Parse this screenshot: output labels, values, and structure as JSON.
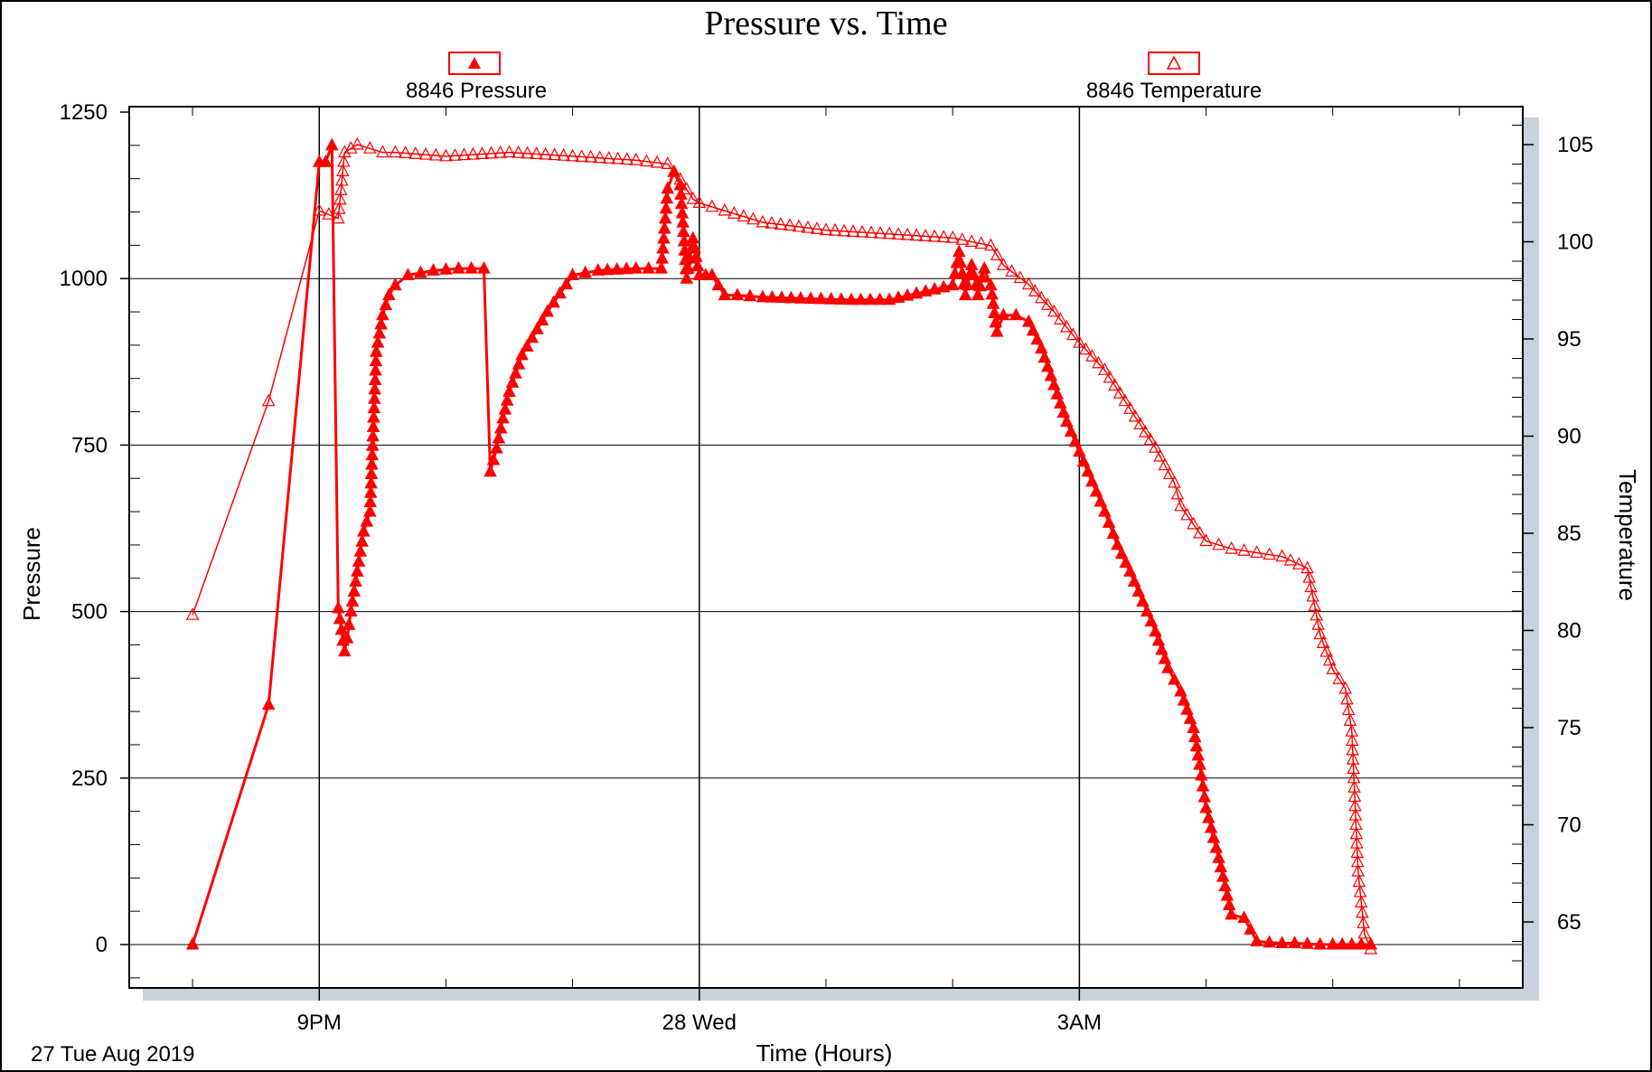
{
  "chart_data": {
    "type": "line",
    "title": "Pressure vs. Time",
    "xlabel": "Time (Hours)",
    "ylabel": "Pressure",
    "y2label": "Temperature",
    "date_label": "27 Tue Aug 2019",
    "x_unit": "hours",
    "xlim": [
      19.5,
      6.5
    ],
    "x_ticks": [
      {
        "x": 21,
        "label": "9PM"
      },
      {
        "x": 24,
        "label": "28 Wed"
      },
      {
        "x": 27,
        "label": "3AM"
      }
    ],
    "x_minor_ticks": [
      20,
      22,
      23,
      25,
      26,
      28,
      29,
      30
    ],
    "ylim": [
      -65,
      1250
    ],
    "y_ticks": [
      0,
      250,
      500,
      750,
      1000,
      1250
    ],
    "y2lim": [
      61.5,
      105.5
    ],
    "y2_ticks": [
      65,
      70,
      75,
      80,
      85,
      90,
      95,
      100,
      105
    ],
    "grid": true,
    "legend_position": "top",
    "series": [
      {
        "name": "8846 Pressure",
        "axis": "left",
        "color": "#ff0000",
        "marker": "filled-triangle",
        "x": [
          20.0,
          20.6,
          21.0,
          21.05,
          21.1,
          21.15,
          21.2,
          21.22,
          21.25,
          21.3,
          21.35,
          21.4,
          21.45,
          21.5,
          21.55,
          21.6,
          21.7,
          21.9,
          22.1,
          22.3,
          22.35,
          22.4,
          22.45,
          22.5,
          22.6,
          22.8,
          23.0,
          23.2,
          23.5,
          23.7,
          23.75,
          23.8,
          23.85,
          23.9,
          23.95,
          24.0,
          24.05,
          24.1,
          24.2,
          24.3,
          24.5,
          24.8,
          25.2,
          25.5,
          26.0,
          26.05,
          26.1,
          26.15,
          26.2,
          26.25,
          26.3,
          26.35,
          26.4,
          26.5,
          26.6,
          26.7,
          26.8,
          26.9,
          27.0,
          27.1,
          27.2,
          27.3,
          27.4,
          27.5,
          27.6,
          27.7,
          27.8,
          27.9,
          27.95,
          28.0,
          28.1,
          28.2,
          28.3,
          28.4,
          28.5,
          28.6,
          28.7,
          28.8,
          28.9,
          29.0,
          29.3
        ],
        "y": [
          0,
          360,
          1175,
          1175,
          1200,
          505,
          440,
          460,
          500,
          560,
          620,
          650,
          890,
          945,
          975,
          990,
          1005,
          1012,
          1015,
          1015,
          710,
          745,
          790,
          830,
          885,
          950,
          1005,
          1012,
          1015,
          1015,
          1135,
          1160,
          1140,
          1000,
          1060,
          1005,
          1005,
          1005,
          975,
          975,
          972,
          970,
          968,
          968,
          990,
          1040,
          975,
          1020,
          975,
          1015,
          990,
          920,
          945,
          945,
          935,
          895,
          840,
          785,
          740,
          695,
          650,
          600,
          560,
          515,
          470,
          415,
          380,
          325,
          270,
          205,
          130,
          45,
          40,
          5,
          3,
          2,
          2,
          1,
          0,
          0,
          0
        ]
      },
      {
        "name": "8846 Temperature",
        "axis": "right",
        "color": "#ff0000",
        "marker": "open-triangle",
        "x": [
          20.0,
          20.6,
          21.0,
          21.15,
          21.2,
          21.25,
          21.3,
          21.4,
          21.5,
          21.6,
          22.0,
          22.5,
          23.0,
          23.5,
          23.75,
          23.85,
          23.95,
          24.0,
          24.2,
          24.5,
          25.0,
          25.5,
          26.0,
          26.3,
          26.4,
          26.6,
          26.8,
          27.0,
          27.2,
          27.4,
          27.6,
          27.75,
          27.8,
          27.95,
          28.0,
          28.2,
          28.4,
          28.6,
          28.8,
          28.9,
          29.0,
          29.1,
          29.15,
          29.2,
          29.25,
          29.3
        ],
        "y": [
          80.8,
          91.8,
          101.6,
          101.2,
          104.6,
          104.8,
          105.0,
          104.8,
          104.6,
          104.6,
          104.4,
          104.6,
          104.4,
          104.2,
          104.0,
          103.2,
          102.2,
          102.0,
          101.6,
          101.0,
          100.6,
          100.4,
          100.2,
          99.8,
          98.8,
          97.8,
          96.4,
          94.8,
          93.4,
          91.4,
          89.4,
          87.6,
          86.4,
          85.0,
          84.6,
          84.2,
          84.0,
          83.8,
          83.2,
          79.8,
          78.0,
          77.0,
          74.8,
          67.6,
          64.4,
          63.6
        ]
      }
    ]
  }
}
